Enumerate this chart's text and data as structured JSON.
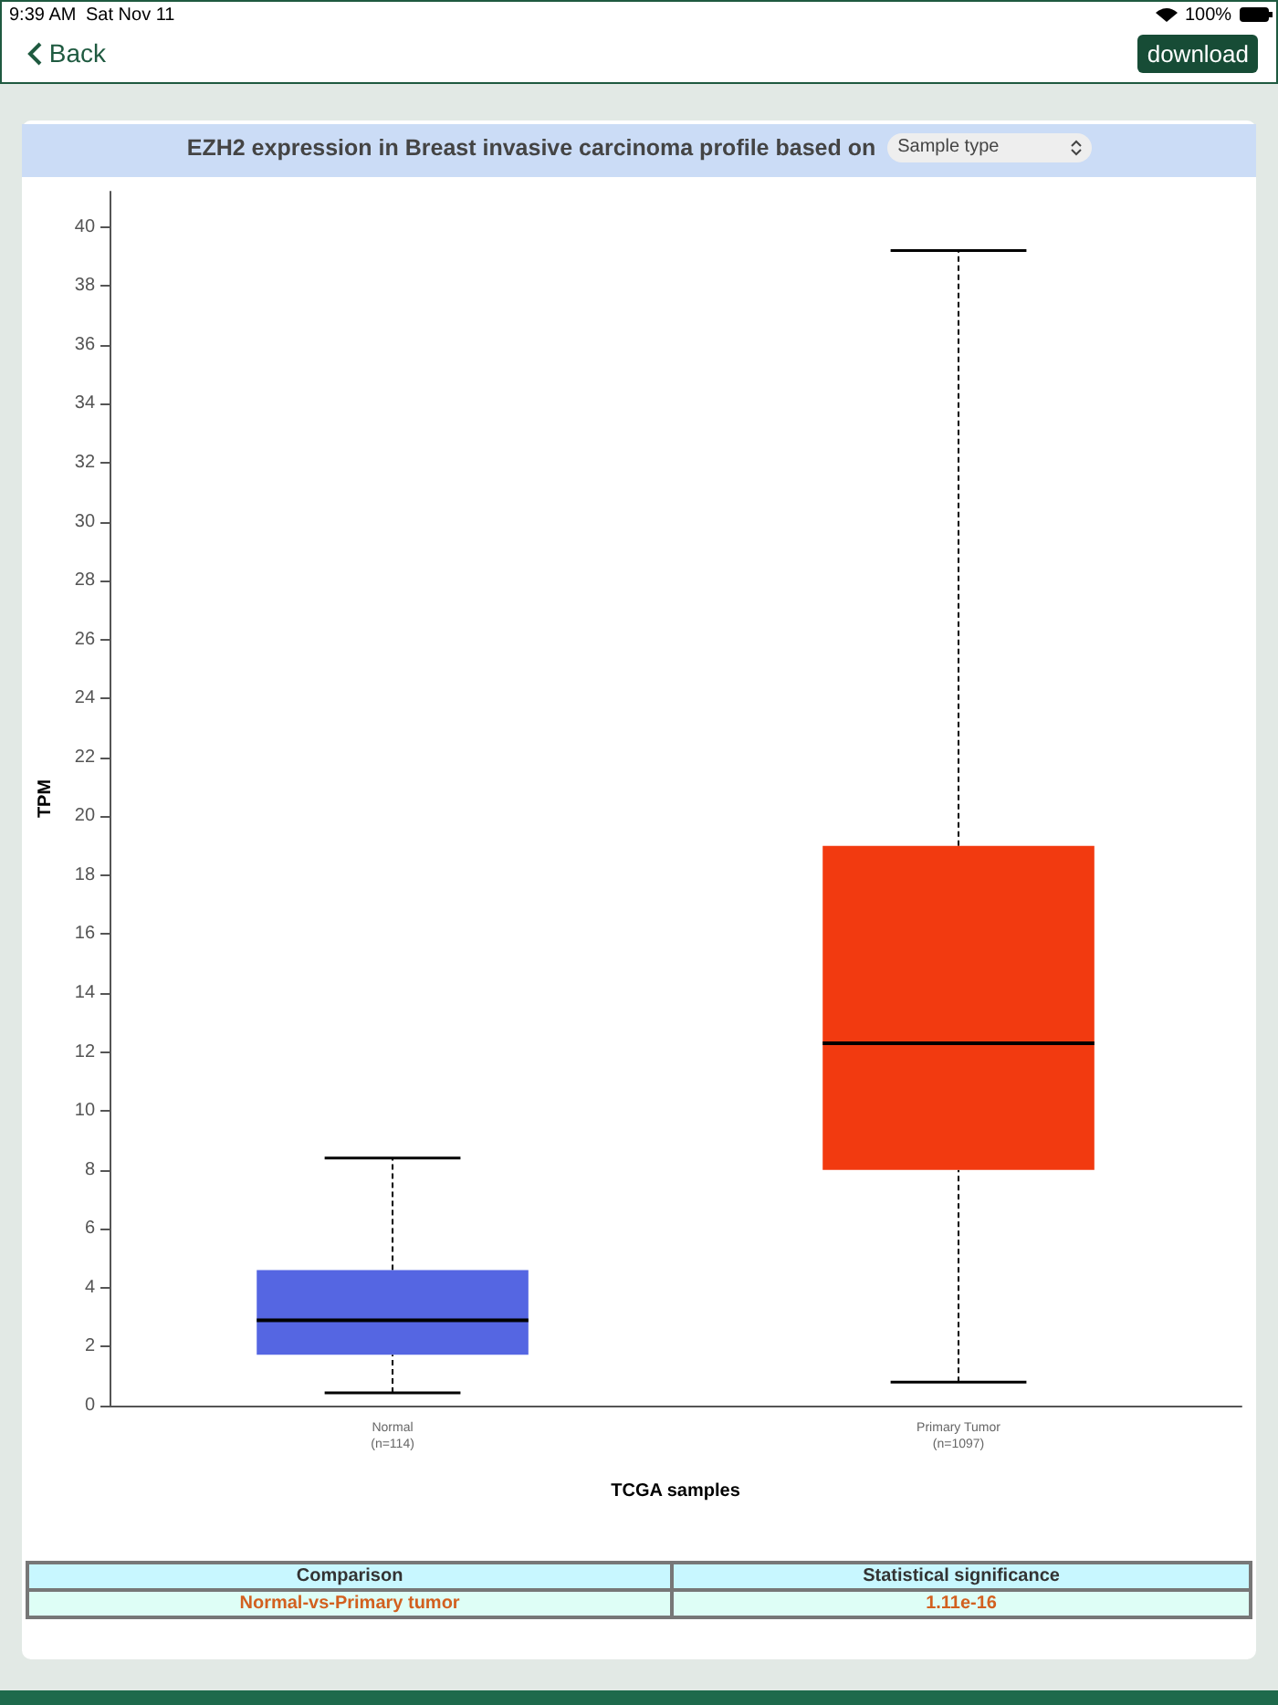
{
  "chart_data": {
    "type": "box",
    "title": "EZH2 expression in Breast invasive carcinoma profile based on",
    "xlabel": "TCGA samples",
    "ylabel": "TPM",
    "categories": [
      "Normal\n(n=114)",
      "Primary Tumor\n(n=1097)"
    ],
    "colors": [
      "#5566e2",
      "#f23a10"
    ],
    "boxes": [
      {
        "low": 0.43,
        "q1": 1.73,
        "median": 2.9,
        "q3": 4.6,
        "high": 8.4
      },
      {
        "low": 0.8,
        "q1": 8.0,
        "median": 12.3,
        "q3": 19.0,
        "high": 39.2
      }
    ],
    "ylim": [
      0,
      41.2
    ],
    "yticks": [
      0,
      2,
      4,
      6,
      8,
      10,
      12,
      14,
      16,
      18,
      20,
      22,
      24,
      26,
      28,
      30,
      32,
      34,
      36,
      38,
      40
    ],
    "grid": false,
    "legend": false,
    "annotations": [
      "9:39 AM",
      "Sat Nov 11",
      "100%",
      "Back",
      "download",
      "Sample type",
      "Comparison",
      "Statistical significance",
      "Normal-vs-Primary tumor",
      "1.11e-16"
    ]
  }
}
